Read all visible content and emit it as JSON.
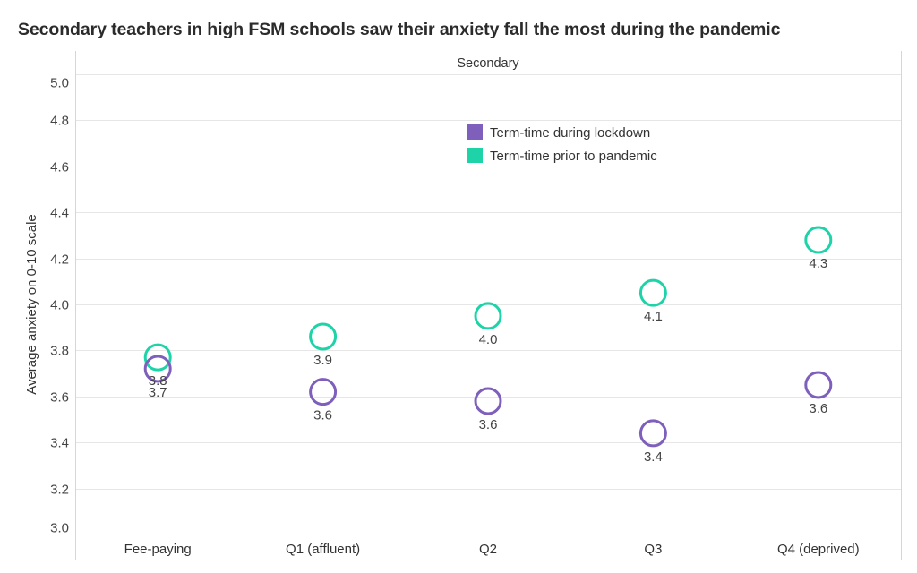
{
  "chart_data": {
    "type": "scatter",
    "title": "Secondary teachers in high FSM schools saw their anxiety fall the most during the pandemic",
    "panel_label": "Secondary",
    "xlabel": "",
    "ylabel": "Average anxiety on 0-10 scale",
    "ylim": [
      3.0,
      5.0
    ],
    "yticks": [
      "5.0",
      "4.8",
      "4.6",
      "4.4",
      "4.2",
      "4.0",
      "3.8",
      "3.6",
      "3.4",
      "3.2",
      "3.0"
    ],
    "grid": true,
    "legend_position": "top-center",
    "categories": [
      "Fee-paying",
      "Q1 (affluent)",
      "Q2",
      "Q3",
      "Q4 (deprived)"
    ],
    "series": [
      {
        "name": "Term-time prior to pandemic",
        "color": "#1ED3A8",
        "values": [
          3.77,
          3.86,
          3.95,
          4.05,
          4.28
        ],
        "labels": [
          "3.8",
          "3.9",
          "4.0",
          "4.1",
          "4.3"
        ]
      },
      {
        "name": "Term-time during lockdown",
        "color": "#7E5FBB",
        "values": [
          3.72,
          3.62,
          3.58,
          3.44,
          3.65
        ],
        "labels": [
          "3.7",
          "3.6",
          "3.6",
          "3.4",
          "3.6"
        ]
      }
    ],
    "legend": [
      {
        "label": "Term-time during lockdown",
        "color": "#7E5FBB"
      },
      {
        "label": "Term-time prior to pandemic",
        "color": "#1ED3A8"
      }
    ]
  }
}
